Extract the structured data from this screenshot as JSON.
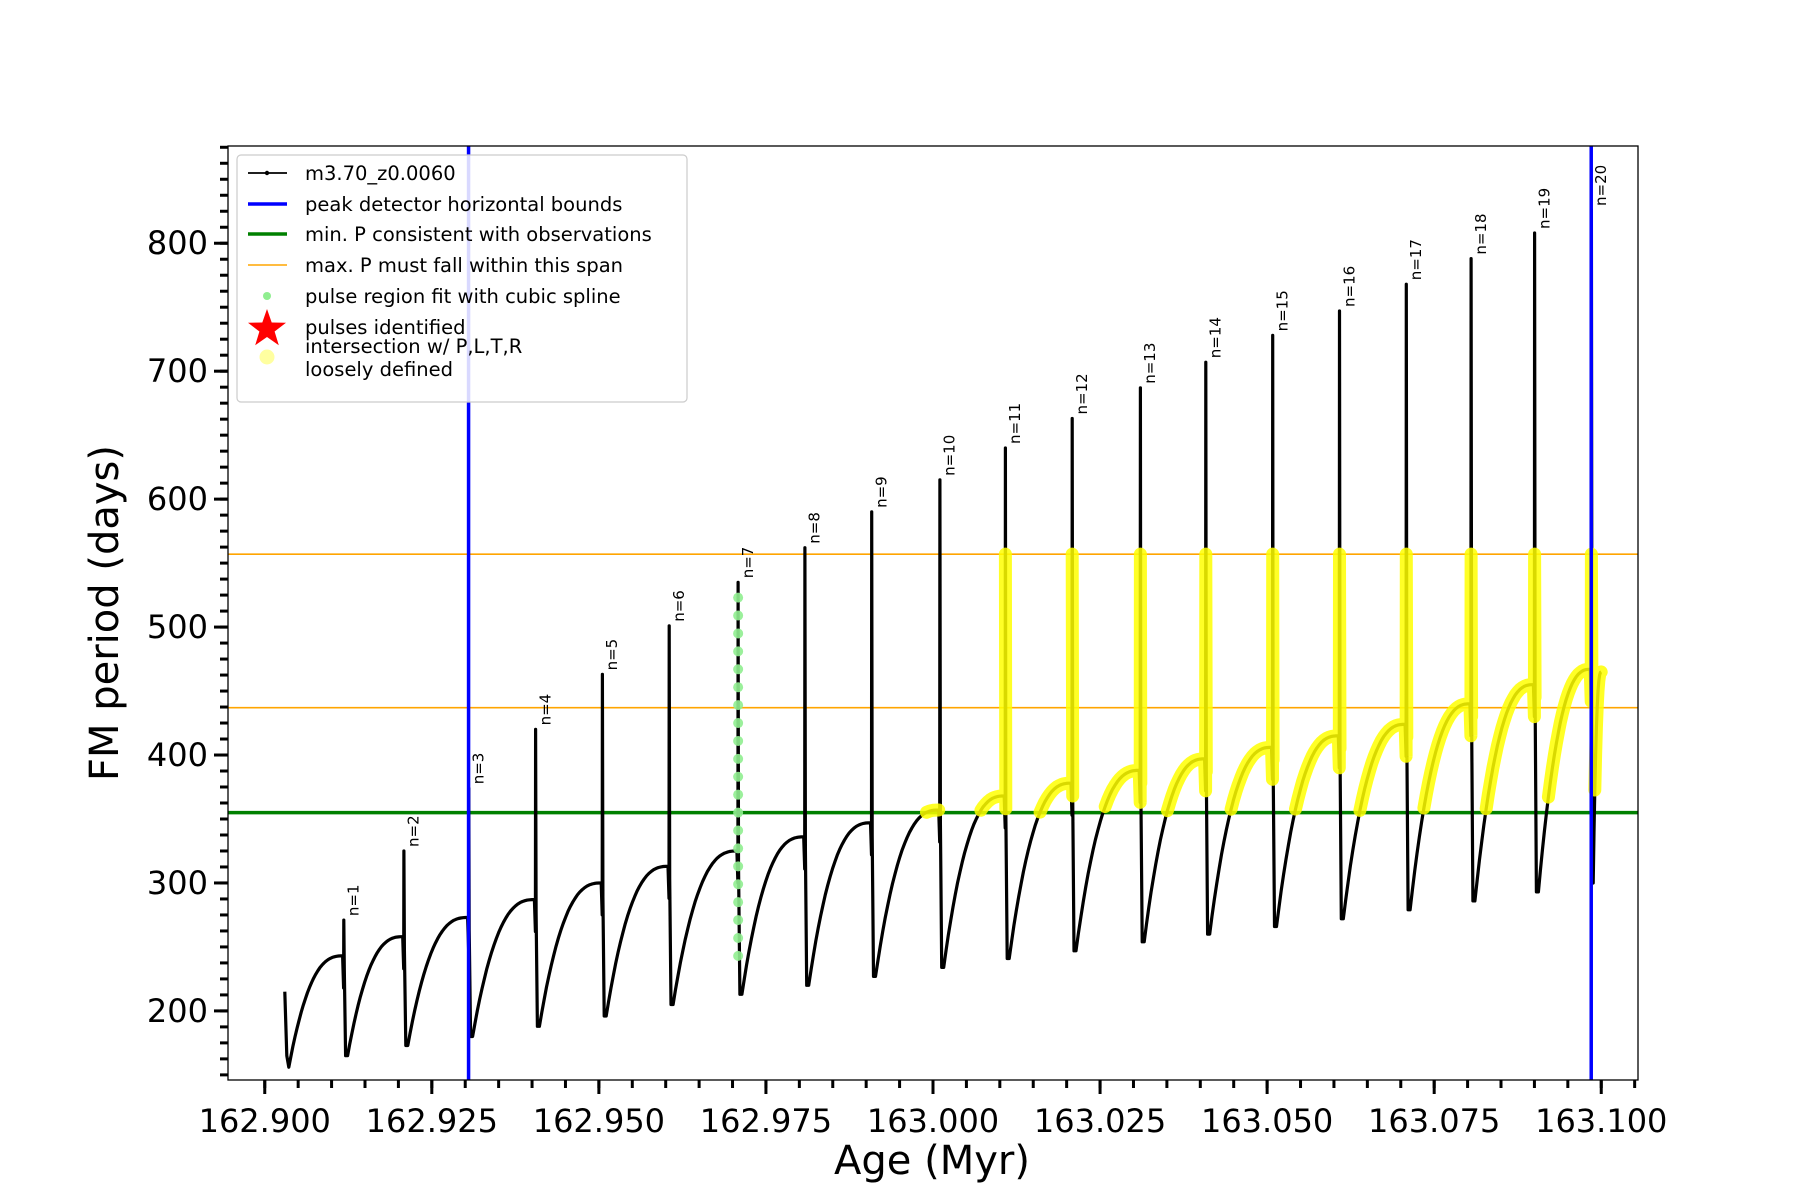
{
  "chart_data": {
    "type": "line",
    "xlabel": "Age (Myr)",
    "ylabel": "FM period (days)",
    "xlim": [
      162.8945,
      163.1055
    ],
    "ylim": [
      146,
      876
    ],
    "xticks": [
      162.9,
      162.925,
      162.95,
      162.975,
      163.0,
      163.025,
      163.05,
      163.075,
      163.1
    ],
    "xtick_labels": [
      "162.900",
      "162.925",
      "162.950",
      "162.975",
      "163.000",
      "163.025",
      "163.050",
      "163.075",
      "163.100"
    ],
    "yticks": [
      200,
      300,
      400,
      500,
      600,
      700,
      800
    ],
    "ytick_labels": [
      "200",
      "300",
      "400",
      "500",
      "600",
      "700",
      "800"
    ],
    "grid": false,
    "legend_position": "top-left",
    "reference_lines": {
      "peak_detector_bounds_x": [
        162.9305,
        163.0985
      ],
      "min_period_y": 355,
      "max_period_span_y": [
        437,
        557
      ]
    },
    "pulse_cycles": [
      {
        "label": "n=1",
        "age": 162.9118,
        "peak": 271,
        "pre": 243,
        "dip": 165,
        "start": 156
      },
      {
        "label": "n=2",
        "age": 162.9208,
        "peak": 325,
        "pre": 258,
        "dip": 173
      },
      {
        "label": "n=3",
        "age": 162.9305,
        "peak": 374,
        "pre": 273,
        "dip": 180
      },
      {
        "label": "n=4",
        "age": 162.9405,
        "peak": 420,
        "pre": 287,
        "dip": 188
      },
      {
        "label": "n=5",
        "age": 162.9505,
        "peak": 463,
        "pre": 300,
        "dip": 196
      },
      {
        "label": "n=6",
        "age": 162.9605,
        "peak": 501,
        "pre": 313,
        "dip": 205
      },
      {
        "label": "n=7",
        "age": 162.9708,
        "peak": 535,
        "pre": 325,
        "dip": 213
      },
      {
        "label": "n=8",
        "age": 162.9808,
        "peak": 562,
        "pre": 336,
        "dip": 220
      },
      {
        "label": "n=9",
        "age": 162.9908,
        "peak": 590,
        "pre": 347,
        "dip": 227
      },
      {
        "label": "n=10",
        "age": 163.001,
        "peak": 615,
        "pre": 357,
        "dip": 234
      },
      {
        "label": "n=11",
        "age": 163.0108,
        "peak": 640,
        "pre": 368,
        "dip": 241
      },
      {
        "label": "n=12",
        "age": 163.0208,
        "peak": 663,
        "pre": 378,
        "dip": 247
      },
      {
        "label": "n=13",
        "age": 163.031,
        "peak": 687,
        "pre": 388,
        "dip": 254
      },
      {
        "label": "n=14",
        "age": 163.0408,
        "peak": 707,
        "pre": 397,
        "dip": 260
      },
      {
        "label": "n=15",
        "age": 163.0508,
        "peak": 728,
        "pre": 406,
        "dip": 266
      },
      {
        "label": "n=16",
        "age": 163.0608,
        "peak": 747,
        "pre": 415,
        "dip": 272
      },
      {
        "label": "n=17",
        "age": 163.0708,
        "peak": 768,
        "pre": 424,
        "dip": 279
      },
      {
        "label": "n=18",
        "age": 163.0805,
        "peak": 788,
        "pre": 440,
        "dip": 286
      },
      {
        "label": "n=19",
        "age": 163.09,
        "peak": 808,
        "pre": 455,
        "dip": 293
      },
      {
        "label": "n=20",
        "age": 163.0985,
        "peak": 826,
        "pre": 467,
        "dip": 300,
        "end": 465
      }
    ],
    "spline_fit_pulse": "n=7",
    "legend": [
      {
        "label": "m3.70_z0.0060",
        "marker": "line-dot",
        "color": "#000000"
      },
      {
        "label": "peak detector horizontal bounds",
        "marker": "line",
        "color": "#0000ff"
      },
      {
        "label": "min. P consistent with observations",
        "marker": "line",
        "color": "#008000"
      },
      {
        "label": "max. P must fall within this span",
        "marker": "line",
        "color": "#ffa500"
      },
      {
        "label": "pulse region fit with cubic spline",
        "marker": "dot",
        "color": "#90ee90"
      },
      {
        "label": "pulses identified",
        "marker": "star",
        "color": "#ff0000"
      },
      {
        "label": "intersection w/ P,L,T,R",
        "label2": "loosely defined",
        "marker": "dot",
        "color": "#ffffa0"
      }
    ],
    "colors": {
      "track": "#000000",
      "bounds": "#0000ff",
      "min_p": "#008000",
      "max_p": "#ffa500",
      "spline": "#90ee90",
      "pulses": "#ff0000",
      "intersection": "#ffff00"
    }
  }
}
